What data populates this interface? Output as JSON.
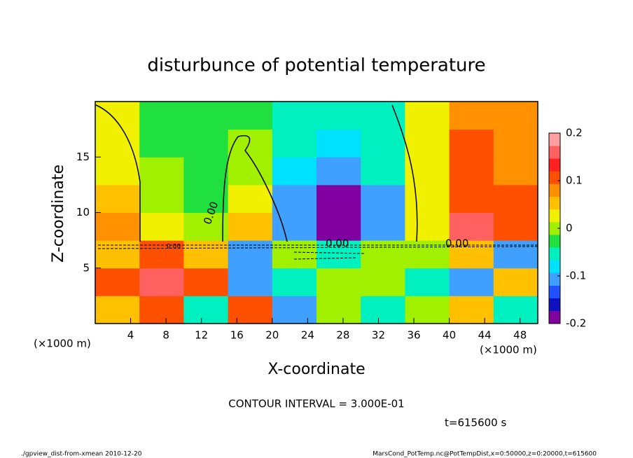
{
  "chart_data": {
    "type": "heatmap",
    "title": "disturbunce of potential temperature",
    "x_label": "X-coordinate",
    "y_label": "Z-coordinate",
    "x_unit": "(×1000 m)",
    "y_unit": "(×1000 m)",
    "x": [
      2.5,
      7.5,
      12.5,
      17.5,
      22.5,
      27.5,
      32.5,
      37.5,
      42.5,
      47.5
    ],
    "y": [
      1.25,
      3.75,
      6.25,
      8.75,
      11.25,
      13.75,
      16.25,
      18.75
    ],
    "z": [
      [
        0.05,
        0.1,
        -0.05,
        0.1,
        -0.1,
        0,
        -0.05,
        0,
        0.05,
        -0.05
      ],
      [
        0.1,
        0.15,
        0.1,
        -0.1,
        -0.05,
        0,
        0,
        -0.05,
        -0.1,
        0.05
      ],
      [
        0.05,
        0.1,
        0.05,
        -0.1,
        0,
        -0.05,
        0,
        0,
        0.05,
        -0.1
      ],
      [
        0.08,
        0.02,
        -0.01,
        0.05,
        -0.1,
        -0.2,
        -0.12,
        0.03,
        0.15,
        0.1
      ],
      [
        0.05,
        0,
        -0.02,
        0.02,
        -0.12,
        -0.18,
        -0.1,
        0.02,
        0.12,
        0.1
      ],
      [
        0.03,
        -0.01,
        -0.02,
        0,
        -0.08,
        -0.12,
        -0.06,
        0.03,
        0.11,
        0.09
      ],
      [
        0.02,
        -0.02,
        -0.03,
        -0.01,
        -0.06,
        -0.08,
        -0.05,
        0.03,
        0.1,
        0.08
      ],
      [
        0.02,
        -0.02,
        -0.03,
        -0.02,
        -0.05,
        -0.06,
        -0.04,
        0.02,
        0.08,
        0.07
      ]
    ],
    "xlim": [
      0,
      50
    ],
    "ylim": [
      0,
      20
    ],
    "xticks": [
      4,
      8,
      12,
      16,
      20,
      24,
      28,
      32,
      36,
      40,
      44,
      48
    ],
    "yticks": [
      5,
      10,
      15
    ],
    "colorbar_lim": [
      -0.2,
      0.2
    ],
    "colorbar_ticks": [
      -0.2,
      -0.1,
      0,
      0.1,
      0.2
    ],
    "colors": [
      "#8000a0",
      "#1010c0",
      "#2050ff",
      "#40a0ff",
      "#00e0ff",
      "#00f0c0",
      "#20e040",
      "#a0f000",
      "#f0f000",
      "#ffc000",
      "#ff9000",
      "#ff5000",
      "#ff2020",
      "#ff6060",
      "#ffa0a0"
    ],
    "contour_labels": [
      "0.00",
      "0.00",
      "0.00",
      "0.00"
    ],
    "contour_interval": "CONTOUR INTERVAL = 3.000E-01",
    "time": "t=615600 s",
    "footer_left": "./gpview_dist-from-xmean  2010-12-20",
    "footer_right": "MarsCond_PotTemp.nc@PotTempDist,x=0:50000,z=0:20000,t=615600"
  }
}
